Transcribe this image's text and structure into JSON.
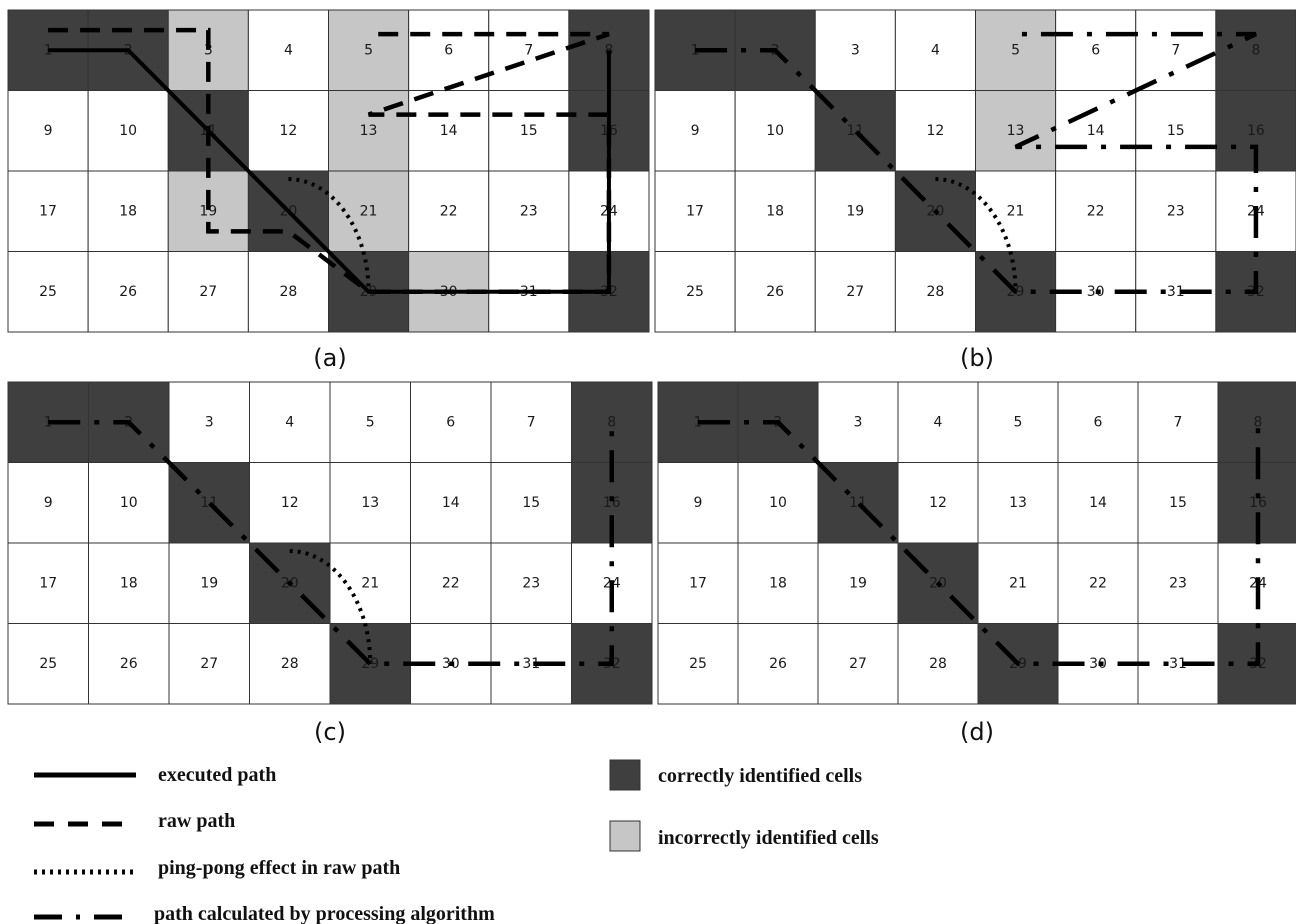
{
  "colors": {
    "correct_cell": "#3f3f3f",
    "incorrect_cell": "#c6c6c6",
    "empty_cell": "#ffffff",
    "grid_line": "#333333",
    "path": "#000000"
  },
  "grid": {
    "rows": 4,
    "cols": 8
  },
  "panels": [
    {
      "label": "(a)",
      "correct_cells": [
        1,
        2,
        8,
        11,
        16,
        20,
        29,
        32
      ],
      "incorrect_cells": [
        3,
        5,
        13,
        19,
        21,
        30
      ],
      "paths": [
        {
          "style": "executed",
          "cells": [
            [
              1,
              0.5
            ],
            [
              2,
              0.5
            ],
            [
              29,
              0.5
            ],
            [
              32,
              0.5
            ],
            [
              8,
              0.5
            ]
          ]
        },
        {
          "style": "raw",
          "cells": [
            [
              1,
              0.25
            ],
            [
              3,
              0.25
            ],
            [
              19,
              0.75
            ],
            [
              20,
              0.75
            ],
            [
              29,
              0.5
            ],
            [
              32,
              0.5
            ],
            [
              16,
              0.3
            ],
            [
              13,
              0.3
            ],
            [
              8,
              0.3
            ],
            [
              5,
              0.3
            ]
          ]
        },
        {
          "style": "pingpong",
          "cells": [
            [
              20,
              0.1
            ],
            [
              29,
              0.5
            ]
          ]
        }
      ]
    },
    {
      "label": "(b)",
      "correct_cells": [
        1,
        2,
        8,
        11,
        16,
        20,
        29,
        32
      ],
      "incorrect_cells": [
        5,
        13
      ],
      "paths": [
        {
          "style": "processed",
          "cells": [
            [
              1,
              0.5
            ],
            [
              2,
              0.5
            ],
            [
              29,
              0.5
            ],
            [
              32,
              0.5
            ],
            [
              24,
              0.5
            ],
            [
              16,
              0.7
            ],
            [
              13,
              0.7
            ],
            [
              8,
              0.3
            ],
            [
              5,
              0.3
            ]
          ]
        },
        {
          "style": "pingpong",
          "cells": [
            [
              20,
              0.1
            ],
            [
              29,
              0.5
            ]
          ]
        }
      ]
    },
    {
      "label": "(c)",
      "correct_cells": [
        1,
        2,
        8,
        11,
        16,
        20,
        29,
        32
      ],
      "incorrect_cells": [],
      "paths": [
        {
          "style": "processed",
          "cells": [
            [
              1,
              0.5
            ],
            [
              2,
              0.5
            ],
            [
              29,
              0.5
            ],
            [
              32,
              0.5
            ],
            [
              8,
              0.5
            ]
          ]
        },
        {
          "style": "pingpong",
          "cells": [
            [
              20,
              0.1
            ],
            [
              29,
              0.5
            ]
          ]
        }
      ]
    },
    {
      "label": "(d)",
      "correct_cells": [
        1,
        2,
        8,
        11,
        16,
        20,
        29,
        32
      ],
      "incorrect_cells": [],
      "paths": [
        {
          "style": "processed",
          "cells": [
            [
              1,
              0.5
            ],
            [
              2,
              0.5
            ],
            [
              29,
              0.5
            ],
            [
              32,
              0.5
            ],
            [
              8,
              0.5
            ]
          ]
        }
      ]
    }
  ],
  "legend": {
    "executed": "executed path",
    "raw": "raw path",
    "pingpong": "ping-pong effect in raw path",
    "processed": "path calculated by processing algorithm",
    "correct": "correctly identified cells",
    "incorrect": "incorrectly identified cells"
  }
}
